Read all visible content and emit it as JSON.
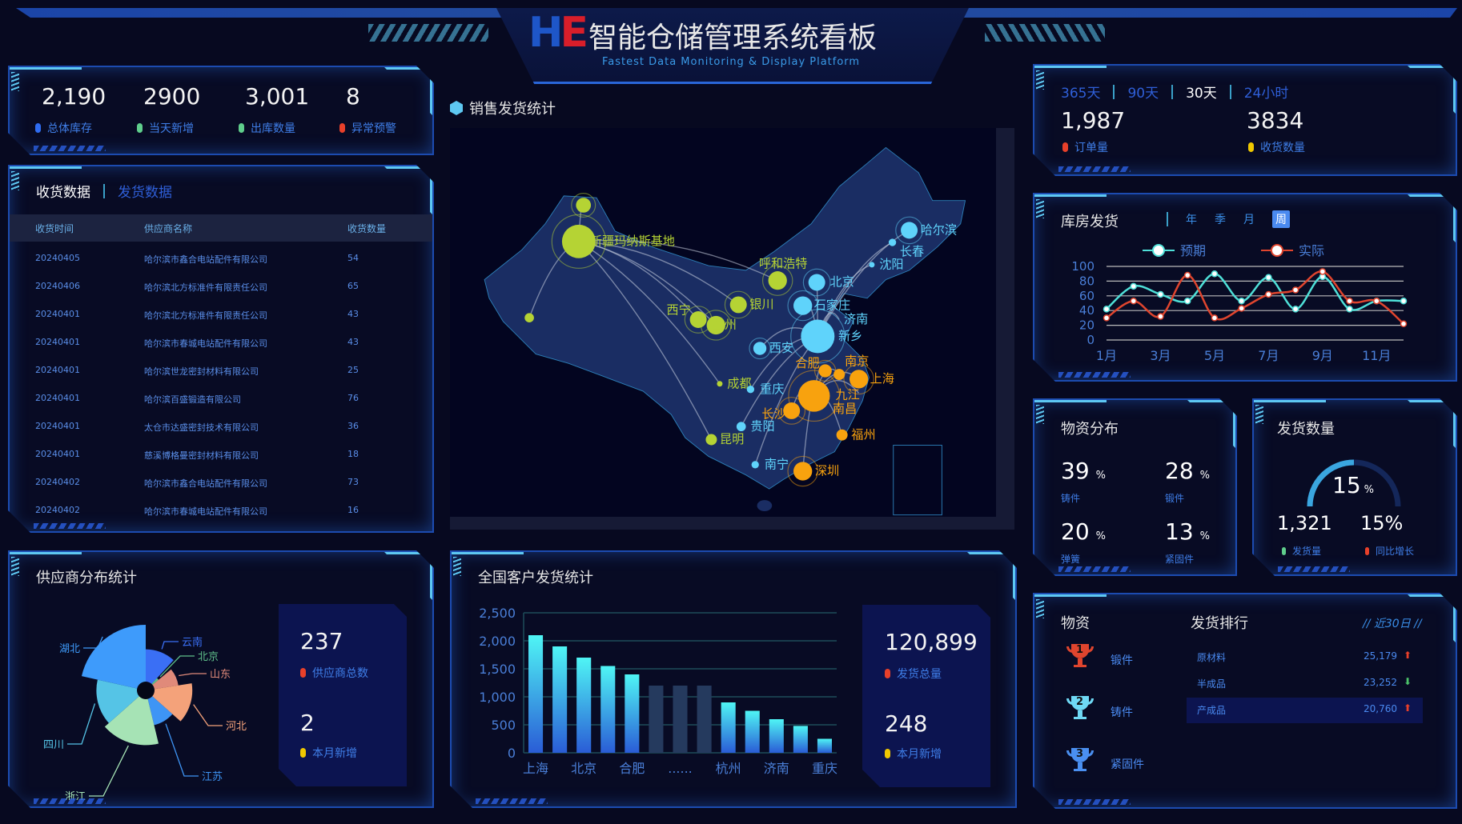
{
  "header": {
    "logo": "HE",
    "title": "智能仓储管理系统看板",
    "subtitle": "Fastest Data Monitoring & Display Platform"
  },
  "top_stats": [
    {
      "value": "2,190",
      "label": "总体库存",
      "color": "#2f6cf0"
    },
    {
      "value": "2900",
      "label": "当天新增",
      "color": "#5fce8c"
    },
    {
      "value": "3,001",
      "label": "出库数量",
      "color": "#5fce8c"
    },
    {
      "value": "8",
      "label": "异常预警",
      "color": "#e8402a"
    }
  ],
  "receive_table": {
    "tabs": [
      "收货数据",
      "发货数据"
    ],
    "active_tab": "收货数据",
    "columns": [
      "收货时间",
      "供应商名称",
      "收货数量"
    ],
    "rows": [
      [
        "20240405",
        "哈尔滨市鑫合电站配件有限公司",
        "54"
      ],
      [
        "20240406",
        "哈尔滨北方标准件有限责任公司",
        "65"
      ],
      [
        "20240401",
        "哈尔滨北方标准件有限责任公司",
        "43"
      ],
      [
        "20240401",
        "哈尔滨市春城电站配件有限公司",
        "43"
      ],
      [
        "20240401",
        "哈尔滨世龙密封材料有限公司",
        "25"
      ],
      [
        "20240401",
        "哈尔滨百盛锻造有限公司",
        "76"
      ],
      [
        "20240401",
        "太仓市达盛密封技术有限公司",
        "36"
      ],
      [
        "20240401",
        "慈溪博格曼密封材料有限公司",
        "18"
      ],
      [
        "20240402",
        "哈尔滨市鑫合电站配件有限公司",
        "73"
      ],
      [
        "20240402",
        "哈尔滨市春城电站配件有限公司",
        "16"
      ]
    ]
  },
  "supplier": {
    "title": "供应商分布统计",
    "total_value": "237",
    "total_label": "供应商总数",
    "new_value": "2",
    "new_label": "本月新增",
    "chart_data": {
      "type": "pie",
      "rose": true,
      "categories": [
        "云南",
        "北京",
        "山东",
        "河北",
        "江苏",
        "浙江",
        "四川",
        "湖北"
      ],
      "values": [
        5.5,
        1,
        4,
        6.5,
        4.5,
        8,
        7,
        10
      ],
      "colors": [
        "#3a6ff5",
        "#5fbf8a",
        "#e08a7a",
        "#f4a27a",
        "#3e95f5",
        "#a6e3b5",
        "#55c4e6",
        "#3e9bfb"
      ]
    }
  },
  "map": {
    "title": "销售发货统计",
    "cities": [
      {
        "name": "新疆玛纳斯基地",
        "group": "green"
      },
      {
        "name": "",
        "group": "green"
      },
      {
        "name": "",
        "group": "green"
      },
      {
        "name": "呼和浩特",
        "group": "green"
      },
      {
        "name": "银川",
        "group": "green"
      },
      {
        "name": "西宁",
        "group": "green"
      },
      {
        "name": "兰州",
        "group": "green"
      },
      {
        "name": "成都",
        "group": "green"
      },
      {
        "name": "昆明",
        "group": "green"
      },
      {
        "name": "北京",
        "group": "cyan"
      },
      {
        "name": "石家庄",
        "group": "cyan"
      },
      {
        "name": "济南",
        "group": "cyan"
      },
      {
        "name": "新乡",
        "group": "cyan"
      },
      {
        "name": "西安",
        "group": "cyan"
      },
      {
        "name": "重庆",
        "group": "cyan"
      },
      {
        "name": "贵阳",
        "group": "cyan"
      },
      {
        "name": "南宁",
        "group": "cyan"
      },
      {
        "name": "哈尔滨",
        "group": "cyan"
      },
      {
        "name": "长春",
        "group": "cyan"
      },
      {
        "name": "沈阳",
        "group": "cyan"
      },
      {
        "name": "合肥",
        "group": "orange"
      },
      {
        "name": "南京",
        "group": "orange"
      },
      {
        "name": "上海",
        "group": "orange"
      },
      {
        "name": "九江",
        "group": "orange"
      },
      {
        "name": "南昌",
        "group": "orange"
      },
      {
        "name": "长沙",
        "group": "orange"
      },
      {
        "name": "福州",
        "group": "orange"
      },
      {
        "name": "深圳",
        "group": "orange"
      }
    ],
    "colors": {
      "green": "#b5d334",
      "cyan": "#5fd3fb",
      "orange": "#f8a20e"
    }
  },
  "shipping": {
    "title": "全国客户发货统计",
    "total_value": "120,899",
    "total_label": "发货总量",
    "new_value": "248",
    "new_label": "本月新增",
    "chart_data": {
      "type": "bar",
      "categories": [
        "上海",
        "",
        "北京",
        "",
        "合肥",
        "",
        "......",
        "",
        "杭州",
        "",
        "济南",
        "",
        "重庆"
      ],
      "values": [
        2100,
        1900,
        1700,
        1550,
        1400,
        1200,
        1200,
        1200,
        900,
        750,
        600,
        480,
        250
      ],
      "highlight_muted": [
        5,
        6,
        7
      ],
      "ylim": [
        0,
        2500
      ],
      "yticks": [
        "0",
        "500",
        "1,000",
        "1,500",
        "2,000",
        "2,500"
      ],
      "grid": true
    }
  },
  "orders": {
    "tabs": [
      "365天",
      "90天",
      "30天",
      "24小时"
    ],
    "active_tab": "30天",
    "stats": [
      {
        "value": "1,987",
        "label": "订单量",
        "color": "#e8402a"
      },
      {
        "value": "3834",
        "label": "收货数量",
        "color": "#f0c800"
      }
    ]
  },
  "warehouse": {
    "title": "库房发货",
    "tabs": [
      "年",
      "季",
      "月",
      "周"
    ],
    "active_tab": "周",
    "chart_data": {
      "type": "line",
      "x": [
        "1月",
        "2月",
        "3月",
        "4月",
        "5月",
        "6月",
        "7月",
        "8月",
        "9月",
        "10月",
        "11月",
        "12月"
      ],
      "xtick_labels": [
        "1月",
        "3月",
        "5月",
        "7月",
        "9月",
        "11月"
      ],
      "ylim": [
        0,
        100
      ],
      "yticks": [
        "0",
        "20",
        "40",
        "60",
        "80",
        "100"
      ],
      "legend": "top-center",
      "grid": true,
      "series": [
        {
          "name": "预期",
          "color": "#4fe0d8",
          "values": [
            42,
            73,
            62,
            53,
            90,
            53,
            85,
            42,
            86,
            42,
            53,
            53
          ]
        },
        {
          "name": "实际",
          "color": "#e0452e",
          "values": [
            30,
            53,
            32,
            88,
            30,
            43,
            62,
            68,
            93,
            53,
            53,
            22
          ]
        }
      ]
    }
  },
  "materials": {
    "title": "物资分布",
    "items": [
      {
        "value": "39",
        "unit": "%",
        "label": "铸件"
      },
      {
        "value": "28",
        "unit": "%",
        "label": "锻件"
      },
      {
        "value": "20",
        "unit": "%",
        "label": "弹簧"
      },
      {
        "value": "13",
        "unit": "%",
        "label": "紧固件"
      }
    ]
  },
  "ship_qty": {
    "title": "发货数量",
    "gauge_value": "15",
    "gauge_unit": "%",
    "stats": [
      {
        "value": "1,321",
        "label": "发货量",
        "color": "#5fce8c"
      },
      {
        "value": "15%",
        "label": "同比增长",
        "color": "#e8402a"
      }
    ]
  },
  "ranking": {
    "left_title": "物资",
    "title": "发货排行",
    "period": "// 近30日 //",
    "trophies": [
      {
        "rank": "1",
        "label": "锻件",
        "color": "#e0452e"
      },
      {
        "rank": "2",
        "label": "铸件",
        "color": "#6fd9f5"
      },
      {
        "rank": "3",
        "label": "紧固件",
        "color": "#4a8ff0"
      }
    ],
    "rows": [
      {
        "name": "原材料",
        "value": "25,179",
        "trend": "up"
      },
      {
        "name": "半成品",
        "value": "23,252",
        "trend": "down"
      },
      {
        "name": "产成品",
        "value": "20,760",
        "trend": "up"
      }
    ],
    "trend_colors": {
      "up": "#e8402a",
      "down": "#4cc36a"
    }
  }
}
